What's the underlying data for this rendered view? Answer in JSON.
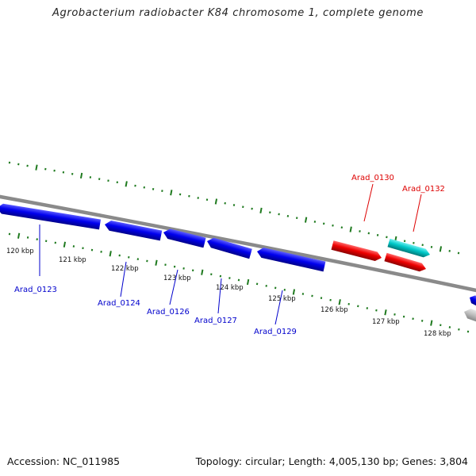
{
  "title": "Agrobacterium radiobacter K84 chromosome 1, complete genome",
  "footer": {
    "accession": "Accession: NC_011985",
    "topology": "Topology: circular; Length: 4,005,130 bp; Genes: 3,804"
  },
  "colors": {
    "backbone": "#8a8a8a",
    "tick": "#1f7a1f",
    "forward_gene": "#ff0000",
    "reverse_gene": "#0000ee",
    "forward_label": "#dd0000",
    "reverse_label": "#0000cc",
    "rna_gene": "#00c8c8",
    "other_gene": "#b8b8b8"
  },
  "ruler": {
    "unit": "kbp",
    "labels": [
      "120 kbp",
      "121 kbp",
      "122 kbp",
      "123 kbp",
      "124 kbp",
      "125 kbp",
      "126 kbp",
      "127 kbp",
      "128 kbp"
    ]
  },
  "genes": [
    {
      "name": "Arad_0123",
      "strand": "reverse",
      "type": "CDS",
      "labeled": true
    },
    {
      "name": "Arad_0124",
      "strand": "reverse",
      "type": "CDS",
      "labeled": true
    },
    {
      "name": "Arad_0126",
      "strand": "reverse",
      "type": "CDS",
      "labeled": true
    },
    {
      "name": "Arad_0127",
      "strand": "reverse",
      "type": "CDS",
      "labeled": true
    },
    {
      "name": "Arad_0129",
      "strand": "reverse",
      "type": "CDS",
      "labeled": true
    },
    {
      "name": "Arad_0130",
      "strand": "forward",
      "type": "CDS",
      "labeled": true
    },
    {
      "name": "Arad_0132",
      "strand": "forward",
      "type": "RNA",
      "labeled": true
    },
    {
      "name": "",
      "strand": "forward",
      "type": "CDS",
      "labeled": false
    },
    {
      "name": "",
      "strand": "reverse",
      "type": "CDS",
      "labeled": false
    },
    {
      "name": "",
      "strand": "reverse",
      "type": "other",
      "labeled": false
    }
  ]
}
